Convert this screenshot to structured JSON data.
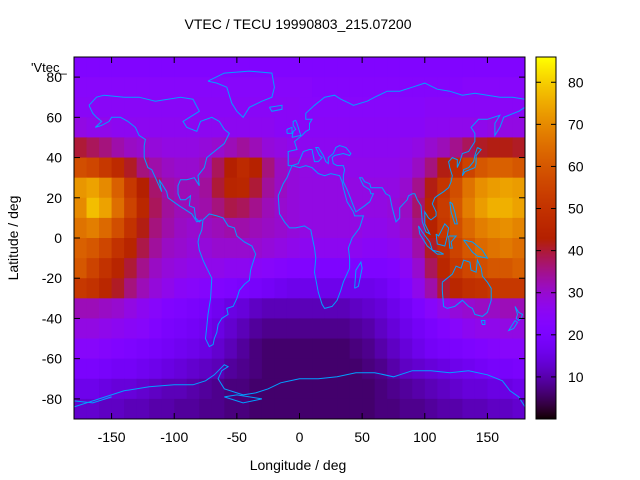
{
  "chart_data": {
    "type": "heatmap",
    "title": "VTEC / TECU 19990803_215.07200",
    "key_label": "'Vtec_",
    "xlabel": "Longitude / deg",
    "ylabel": "Latitude / deg",
    "xlim": [
      -180,
      180
    ],
    "ylim": [
      -90,
      90
    ],
    "x_ticks": [
      -150,
      -100,
      -50,
      0,
      50,
      100,
      150
    ],
    "y_ticks": [
      -80,
      -60,
      -40,
      -20,
      0,
      20,
      40,
      60,
      80
    ],
    "cb_range": [
      0,
      86
    ],
    "cb_ticks": [
      10,
      20,
      30,
      40,
      50,
      60,
      70,
      80
    ],
    "colormap": "gnuplot rgbformulae 7,5,15 (black-purple-red-orange-yellow)",
    "coastline_color": "#00a0ff",
    "grid": false,
    "colorbar_position": "right",
    "grid_cells": {
      "lon_step_deg": 10,
      "lat_step_deg": 10
    },
    "lons": [
      -175,
      -165,
      -155,
      -145,
      -135,
      -125,
      -115,
      -105,
      -95,
      -85,
      -75,
      -65,
      -55,
      -45,
      -35,
      -25,
      -15,
      -5,
      5,
      15,
      25,
      35,
      45,
      55,
      65,
      75,
      85,
      95,
      105,
      115,
      125,
      135,
      145,
      155,
      165,
      175
    ],
    "lats": [
      85,
      75,
      65,
      55,
      45,
      35,
      25,
      15,
      5,
      -5,
      -15,
      -25,
      -35,
      -45,
      -55,
      -65,
      -75,
      -85
    ],
    "values": [
      [
        22,
        22,
        22,
        22,
        22,
        22,
        22,
        22,
        22,
        22,
        22,
        22,
        22,
        22,
        22,
        22,
        22,
        22,
        22,
        22,
        22,
        22,
        22,
        22,
        22,
        22,
        22,
        22,
        22,
        22,
        22,
        22,
        22,
        22,
        22,
        22
      ],
      [
        24,
        24,
        24,
        24,
        24,
        24,
        24,
        24,
        24,
        24,
        24,
        24,
        24,
        24,
        24,
        24,
        24,
        24,
        24,
        23,
        23,
        23,
        23,
        23,
        23,
        23,
        23,
        23,
        23,
        23,
        23,
        24,
        24,
        24,
        24,
        24
      ],
      [
        25,
        25,
        25,
        25,
        25,
        25,
        25,
        25,
        25,
        25,
        25,
        25,
        25,
        25,
        25,
        25,
        25,
        25,
        24,
        24,
        24,
        24,
        24,
        24,
        24,
        24,
        24,
        24,
        25,
        25,
        25,
        25,
        25,
        25,
        25,
        25
      ],
      [
        28,
        27,
        27,
        26,
        26,
        26,
        26,
        26,
        26,
        26,
        26,
        26,
        26,
        26,
        26,
        26,
        25,
        25,
        25,
        25,
        25,
        25,
        25,
        25,
        25,
        25,
        25,
        25,
        26,
        26,
        27,
        27,
        27,
        28,
        28,
        28
      ],
      [
        40,
        38,
        36,
        33,
        31,
        30,
        29,
        28,
        28,
        28,
        29,
        30,
        32,
        34,
        32,
        29,
        28,
        27,
        26,
        26,
        26,
        26,
        26,
        26,
        26,
        26,
        27,
        28,
        30,
        32,
        35,
        38,
        41,
        42,
        42,
        41
      ],
      [
        58,
        56,
        52,
        47,
        41,
        36,
        33,
        31,
        30,
        30,
        32,
        38,
        43,
        47,
        44,
        36,
        31,
        29,
        28,
        27,
        27,
        27,
        27,
        27,
        27,
        27,
        28,
        31,
        36,
        42,
        48,
        55,
        60,
        62,
        62,
        60
      ],
      [
        72,
        74,
        70,
        62,
        52,
        43,
        37,
        33,
        32,
        32,
        34,
        40,
        45,
        46,
        40,
        34,
        31,
        29,
        28,
        28,
        28,
        28,
        28,
        28,
        28,
        28,
        30,
        35,
        42,
        51,
        58,
        66,
        71,
        73,
        74,
        73
      ],
      [
        70,
        78,
        74,
        65,
        55,
        46,
        38,
        34,
        32,
        32,
        33,
        36,
        39,
        38,
        35,
        32,
        30,
        29,
        28,
        28,
        28,
        28,
        28,
        28,
        28,
        29,
        31,
        37,
        45,
        53,
        60,
        68,
        73,
        76,
        76,
        74
      ],
      [
        66,
        68,
        64,
        58,
        50,
        42,
        36,
        33,
        31,
        30,
        31,
        32,
        33,
        33,
        32,
        31,
        30,
        29,
        28,
        28,
        28,
        28,
        28,
        27,
        27,
        28,
        30,
        35,
        44,
        52,
        58,
        64,
        68,
        70,
        71,
        69
      ],
      [
        62,
        60,
        56,
        50,
        45,
        39,
        34,
        31,
        30,
        29,
        29,
        30,
        30,
        30,
        30,
        29,
        28,
        27,
        26,
        26,
        26,
        26,
        26,
        25,
        25,
        26,
        28,
        33,
        41,
        49,
        55,
        60,
        64,
        66,
        67,
        65
      ],
      [
        60,
        55,
        50,
        45,
        40,
        35,
        31,
        29,
        28,
        27,
        27,
        27,
        26,
        26,
        25,
        24,
        23,
        22,
        22,
        21,
        21,
        21,
        21,
        21,
        21,
        22,
        25,
        30,
        38,
        46,
        52,
        56,
        58,
        60,
        60,
        62
      ],
      [
        52,
        50,
        46,
        41,
        36,
        32,
        29,
        27,
        25,
        24,
        23,
        22,
        21,
        20,
        19,
        18,
        17,
        16,
        16,
        16,
        16,
        16,
        16,
        16,
        17,
        19,
        22,
        27,
        33,
        40,
        46,
        49,
        50,
        52,
        52,
        52
      ],
      [
        32,
        32,
        31,
        30,
        28,
        26,
        24,
        22,
        21,
        20,
        19,
        17,
        15,
        14,
        12,
        11,
        11,
        11,
        11,
        11,
        11,
        11,
        12,
        13,
        14,
        16,
        18,
        21,
        24,
        27,
        29,
        30,
        31,
        31,
        32,
        32
      ],
      [
        28,
        28,
        27,
        26,
        25,
        24,
        22,
        20,
        19,
        18,
        17,
        15,
        13,
        11,
        9,
        8,
        8,
        8,
        8,
        8,
        8,
        8,
        9,
        10,
        12,
        14,
        16,
        18,
        20,
        22,
        24,
        26,
        27,
        27,
        28,
        28
      ],
      [
        24,
        24,
        23,
        22,
        21,
        20,
        19,
        18,
        17,
        16,
        15,
        13,
        11,
        9,
        7,
        6,
        6,
        6,
        6,
        6,
        6,
        6,
        7,
        8,
        10,
        12,
        14,
        16,
        18,
        19,
        20,
        21,
        22,
        23,
        24,
        24
      ],
      [
        20,
        20,
        19,
        18,
        18,
        17,
        16,
        15,
        14,
        13,
        12,
        11,
        9,
        8,
        7,
        6,
        6,
        6,
        6,
        6,
        6,
        6,
        6,
        7,
        8,
        10,
        12,
        13,
        14,
        15,
        16,
        17,
        18,
        19,
        19,
        20
      ],
      [
        16,
        16,
        15,
        14,
        14,
        13,
        12,
        11,
        11,
        10,
        9,
        8,
        7,
        7,
        6,
        6,
        6,
        6,
        6,
        6,
        6,
        6,
        6,
        6,
        7,
        8,
        9,
        10,
        11,
        12,
        13,
        14,
        14,
        15,
        15,
        16
      ],
      [
        13,
        13,
        12,
        12,
        11,
        11,
        10,
        10,
        9,
        9,
        8,
        8,
        7,
        7,
        6,
        6,
        6,
        6,
        6,
        6,
        6,
        6,
        6,
        6,
        7,
        7,
        8,
        8,
        9,
        10,
        10,
        11,
        11,
        12,
        12,
        13
      ]
    ]
  }
}
